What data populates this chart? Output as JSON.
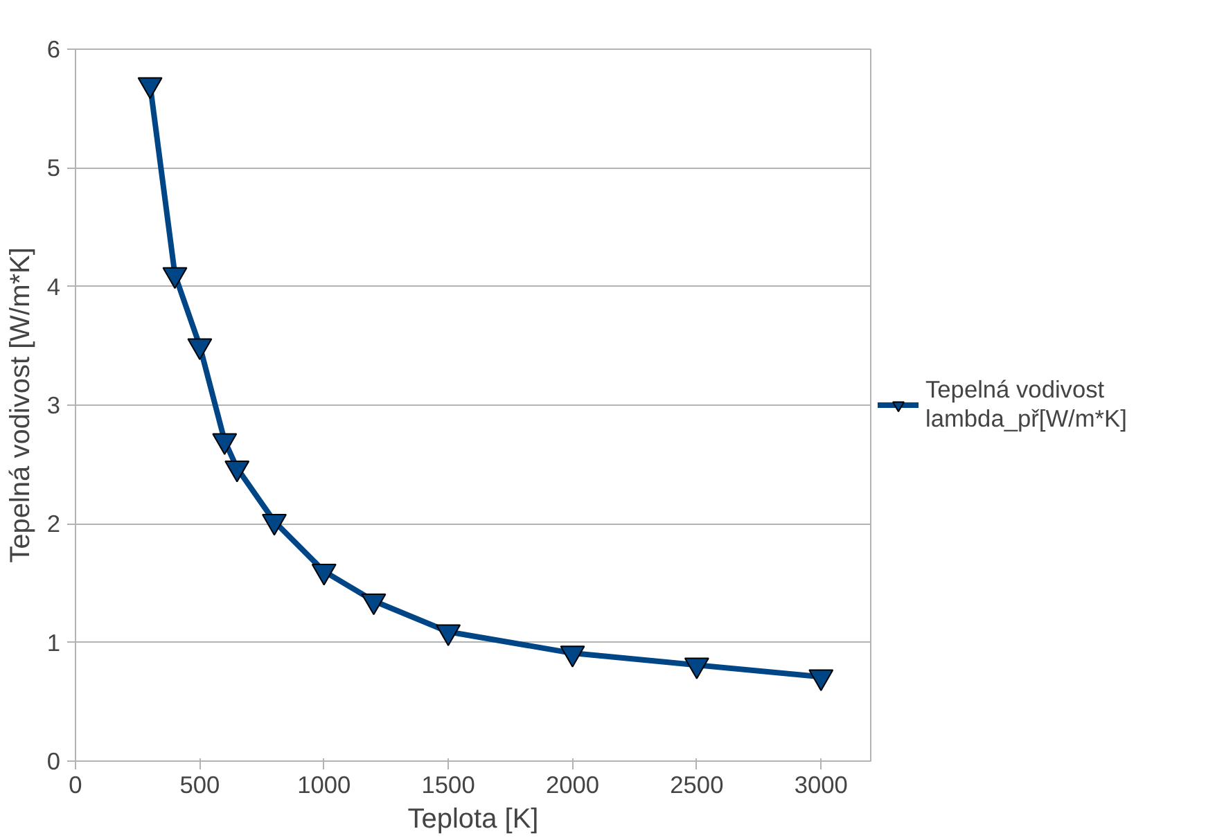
{
  "chart_data": {
    "type": "line",
    "xlabel": "Teplota [K]",
    "ylabel": "Tepelná vodivost [W/m*K]",
    "x": [
      300,
      400,
      500,
      600,
      650,
      800,
      1000,
      1200,
      1500,
      2000,
      2500,
      3000
    ],
    "series": [
      {
        "name": "Tepelná vodivost lambda_př[W/m*K]",
        "color": "#004586",
        "values": [
          5.7,
          4.1,
          3.5,
          2.7,
          2.47,
          2.02,
          1.6,
          1.35,
          1.09,
          0.91,
          0.81,
          0.71
        ]
      }
    ],
    "xlim": [
      0,
      3200
    ],
    "xticks": [
      0,
      500,
      1000,
      1500,
      2000,
      2500,
      3000
    ],
    "ylim": [
      0,
      6
    ],
    "yticks": [
      0,
      1,
      2,
      3,
      4,
      5,
      6
    ],
    "grid": "y",
    "legend": "right",
    "marker": "triangle",
    "line_style": "solid"
  }
}
